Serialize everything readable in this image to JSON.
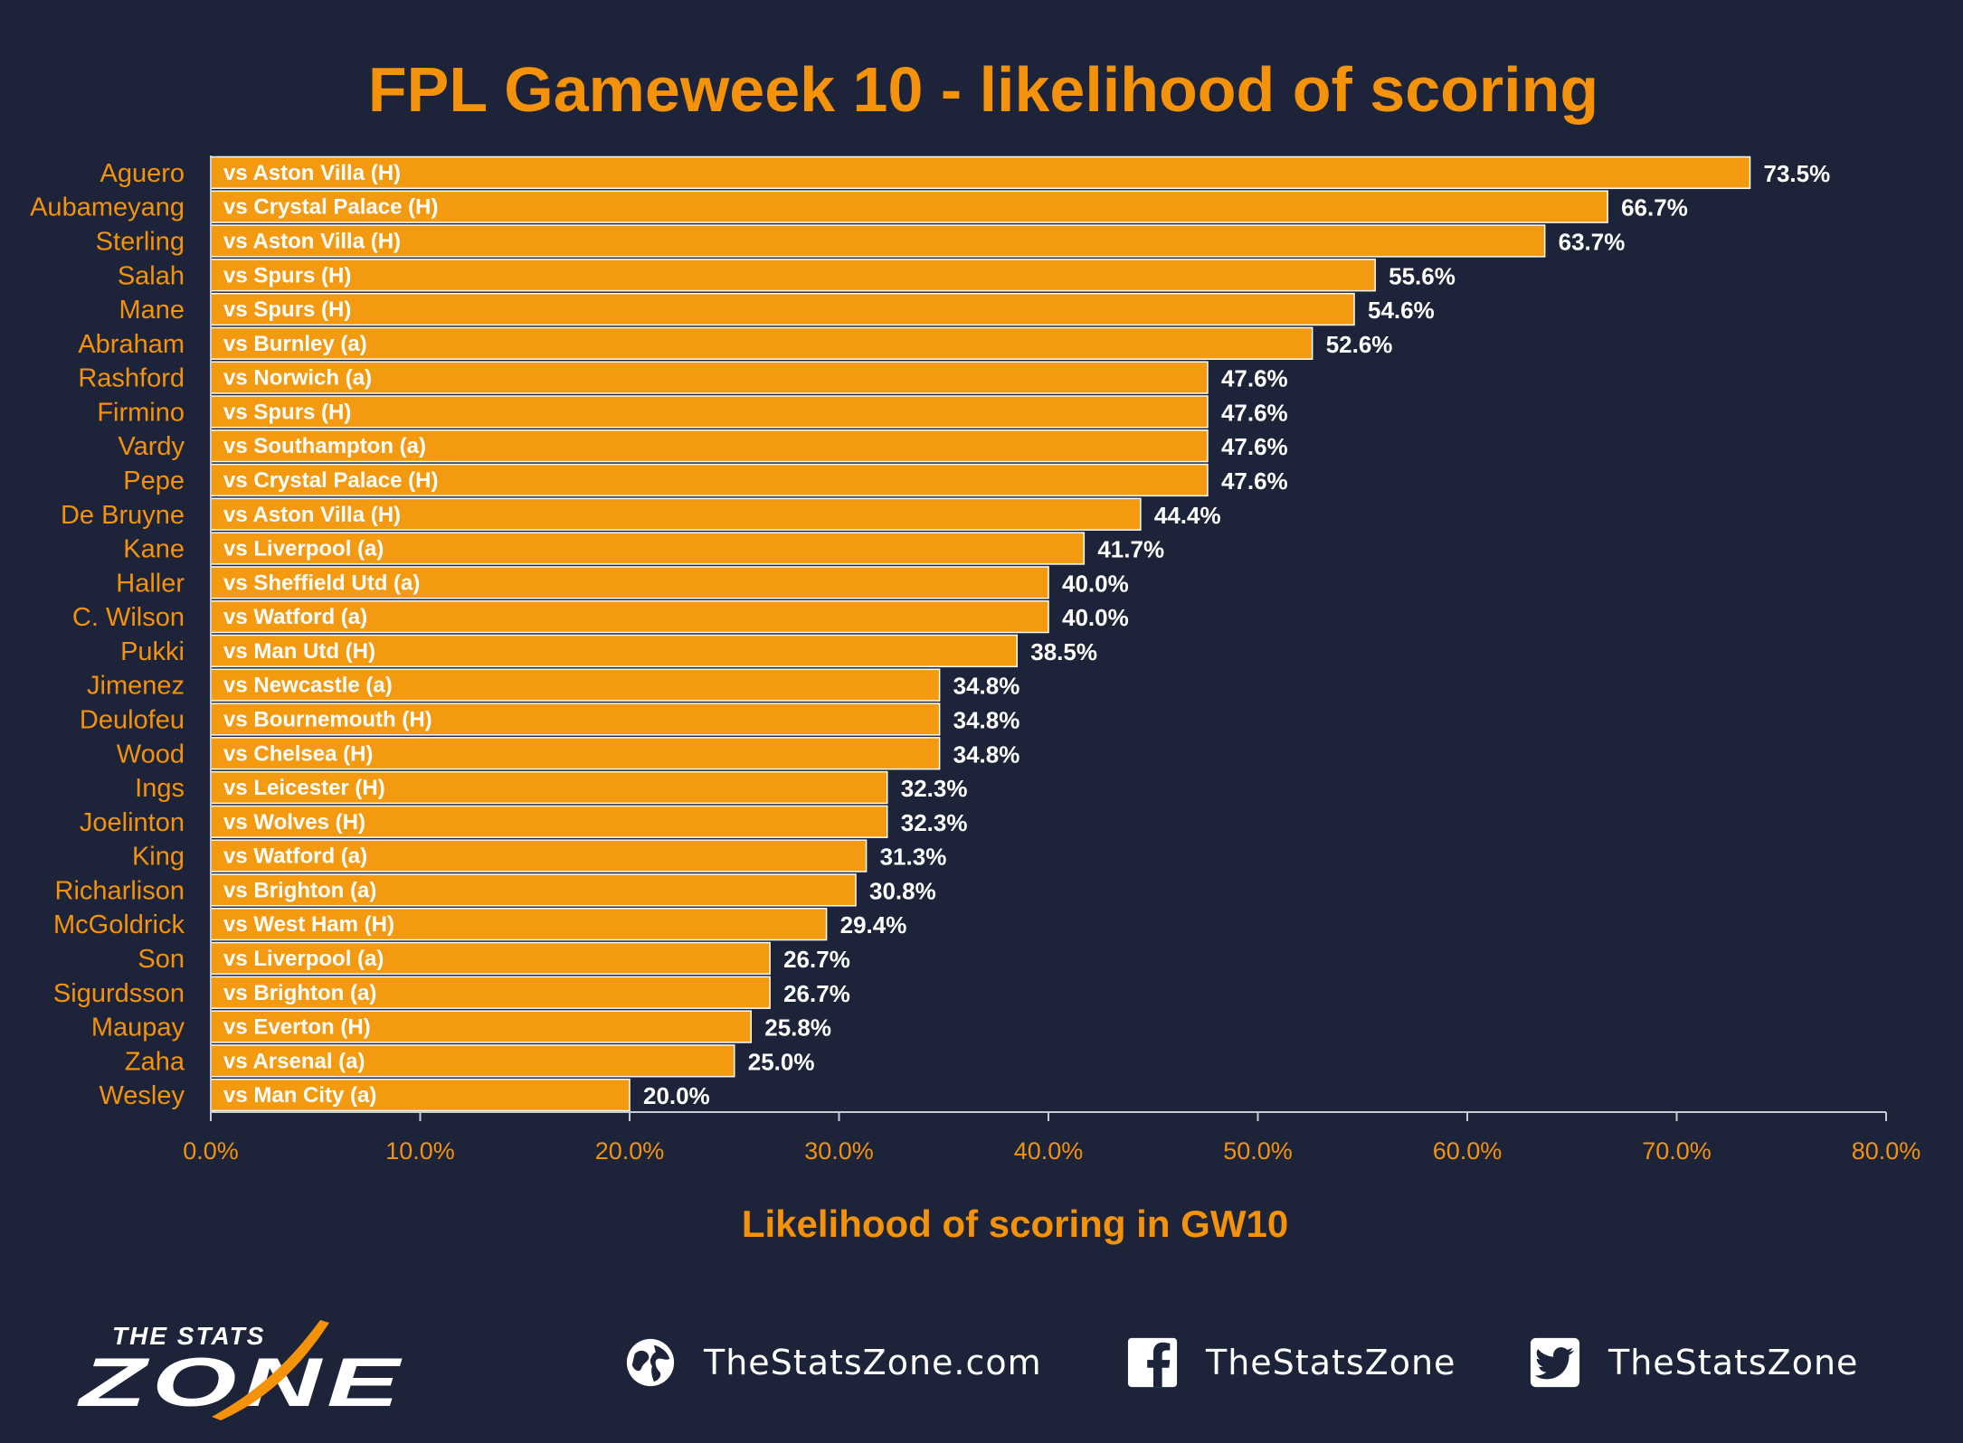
{
  "title": "FPL Gameweek 10 - likelihood of scoring",
  "colors": {
    "background": "#1d2439",
    "accent": "#f4920a",
    "bar": "#f39a10",
    "bar_text": "#ffffff",
    "value_text": "#ffffff",
    "axis": "#c9cbd3"
  },
  "chart_data": {
    "type": "bar",
    "orientation": "horizontal",
    "title": "FPL Gameweek 10 - likelihood of scoring",
    "xlabel": "Likelihood of scoring in GW10",
    "ylabel": "",
    "xlim": [
      0,
      80
    ],
    "ticks": [
      "0.0%",
      "10.0%",
      "20.0%",
      "30.0%",
      "40.0%",
      "50.0%",
      "60.0%",
      "70.0%",
      "80.0%"
    ],
    "grid": false,
    "categories": [
      "Aguero",
      "Aubameyang",
      "Sterling",
      "Salah",
      "Mane",
      "Abraham",
      "Rashford",
      "Firmino",
      "Vardy",
      "Pepe",
      "De Bruyne",
      "Kane",
      "Haller",
      "C. Wilson",
      "Pukki",
      "Jimenez",
      "Deulofeu",
      "Wood",
      "Ings",
      "Joelinton",
      "King",
      "Richarlison",
      "McGoldrick",
      "Son",
      "Sigurdsson",
      "Maupay",
      "Zaha",
      "Wesley"
    ],
    "fixtures": [
      "vs Aston Villa (H)",
      "vs Crystal Palace (H)",
      "vs Aston Villa (H)",
      "vs Spurs (H)",
      "vs Spurs (H)",
      "vs Burnley (a)",
      "vs Norwich (a)",
      "vs Spurs (H)",
      "vs Southampton (a)",
      "vs Crystal Palace (H)",
      "vs Aston Villa (H)",
      "vs Liverpool (a)",
      "vs Sheffield Utd (a)",
      "vs Watford (a)",
      "vs Man Utd (H)",
      "vs Newcastle (a)",
      "vs Bournemouth (H)",
      "vs Chelsea (H)",
      "vs Leicester (H)",
      "vs Wolves (H)",
      "vs Watford (a)",
      "vs Brighton (a)",
      "vs West Ham (H)",
      "vs Liverpool (a)",
      "vs Brighton (a)",
      "vs Everton (H)",
      "vs Arsenal (a)",
      "vs Man City (a)"
    ],
    "values": [
      73.5,
      66.7,
      63.7,
      55.6,
      54.6,
      52.6,
      47.6,
      47.6,
      47.6,
      47.6,
      44.4,
      41.7,
      40.0,
      40.0,
      38.5,
      34.8,
      34.8,
      34.8,
      32.3,
      32.3,
      31.3,
      30.8,
      29.4,
      26.7,
      26.7,
      25.8,
      25.0,
      20.0
    ],
    "value_labels": [
      "73.5%",
      "66.7%",
      "63.7%",
      "55.6%",
      "54.6%",
      "52.6%",
      "47.6%",
      "47.6%",
      "47.6%",
      "47.6%",
      "44.4%",
      "41.7%",
      "40.0%",
      "40.0%",
      "38.5%",
      "34.8%",
      "34.8%",
      "34.8%",
      "32.3%",
      "32.3%",
      "31.3%",
      "30.8%",
      "29.4%",
      "26.7%",
      "26.7%",
      "25.8%",
      "25.0%",
      "20.0%"
    ]
  },
  "footer": {
    "logo_top": "THE STATS",
    "logo_bottom": "ZONE",
    "website": "TheStatsZone.com",
    "facebook": "TheStatsZone",
    "twitter": "TheStatsZone",
    "icons": [
      "globe-icon",
      "facebook-icon",
      "twitter-icon"
    ]
  }
}
